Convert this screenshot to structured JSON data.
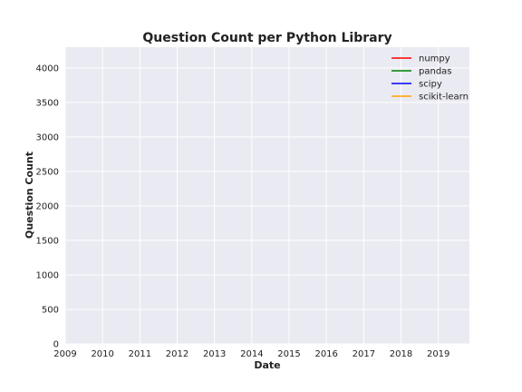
{
  "chart_data": {
    "type": "line",
    "title": "Question Count per Python Library",
    "xlabel": "Date",
    "ylabel": "Question Count",
    "x_ticks": [
      "2009",
      "2010",
      "2011",
      "2012",
      "2013",
      "2014",
      "2015",
      "2016",
      "2017",
      "2018",
      "2019"
    ],
    "xlim": [
      "2009-01",
      "2019-11"
    ],
    "y_ticks": [
      0,
      500,
      1000,
      1500,
      2000,
      2500,
      3000,
      3500,
      4000
    ],
    "ylim": [
      0,
      4300
    ],
    "grid": true,
    "legend_position": "top-right",
    "series": [
      {
        "name": "numpy",
        "color": "#ff0000",
        "points": []
      },
      {
        "name": "pandas",
        "color": "#008000",
        "points": []
      },
      {
        "name": "scipy",
        "color": "#0000ff",
        "points": []
      },
      {
        "name": "scikit-learn",
        "color": "#ffa500",
        "points": []
      }
    ]
  },
  "colors": {
    "plot_background": "#eaeaf2",
    "grid": "#ffffff"
  }
}
